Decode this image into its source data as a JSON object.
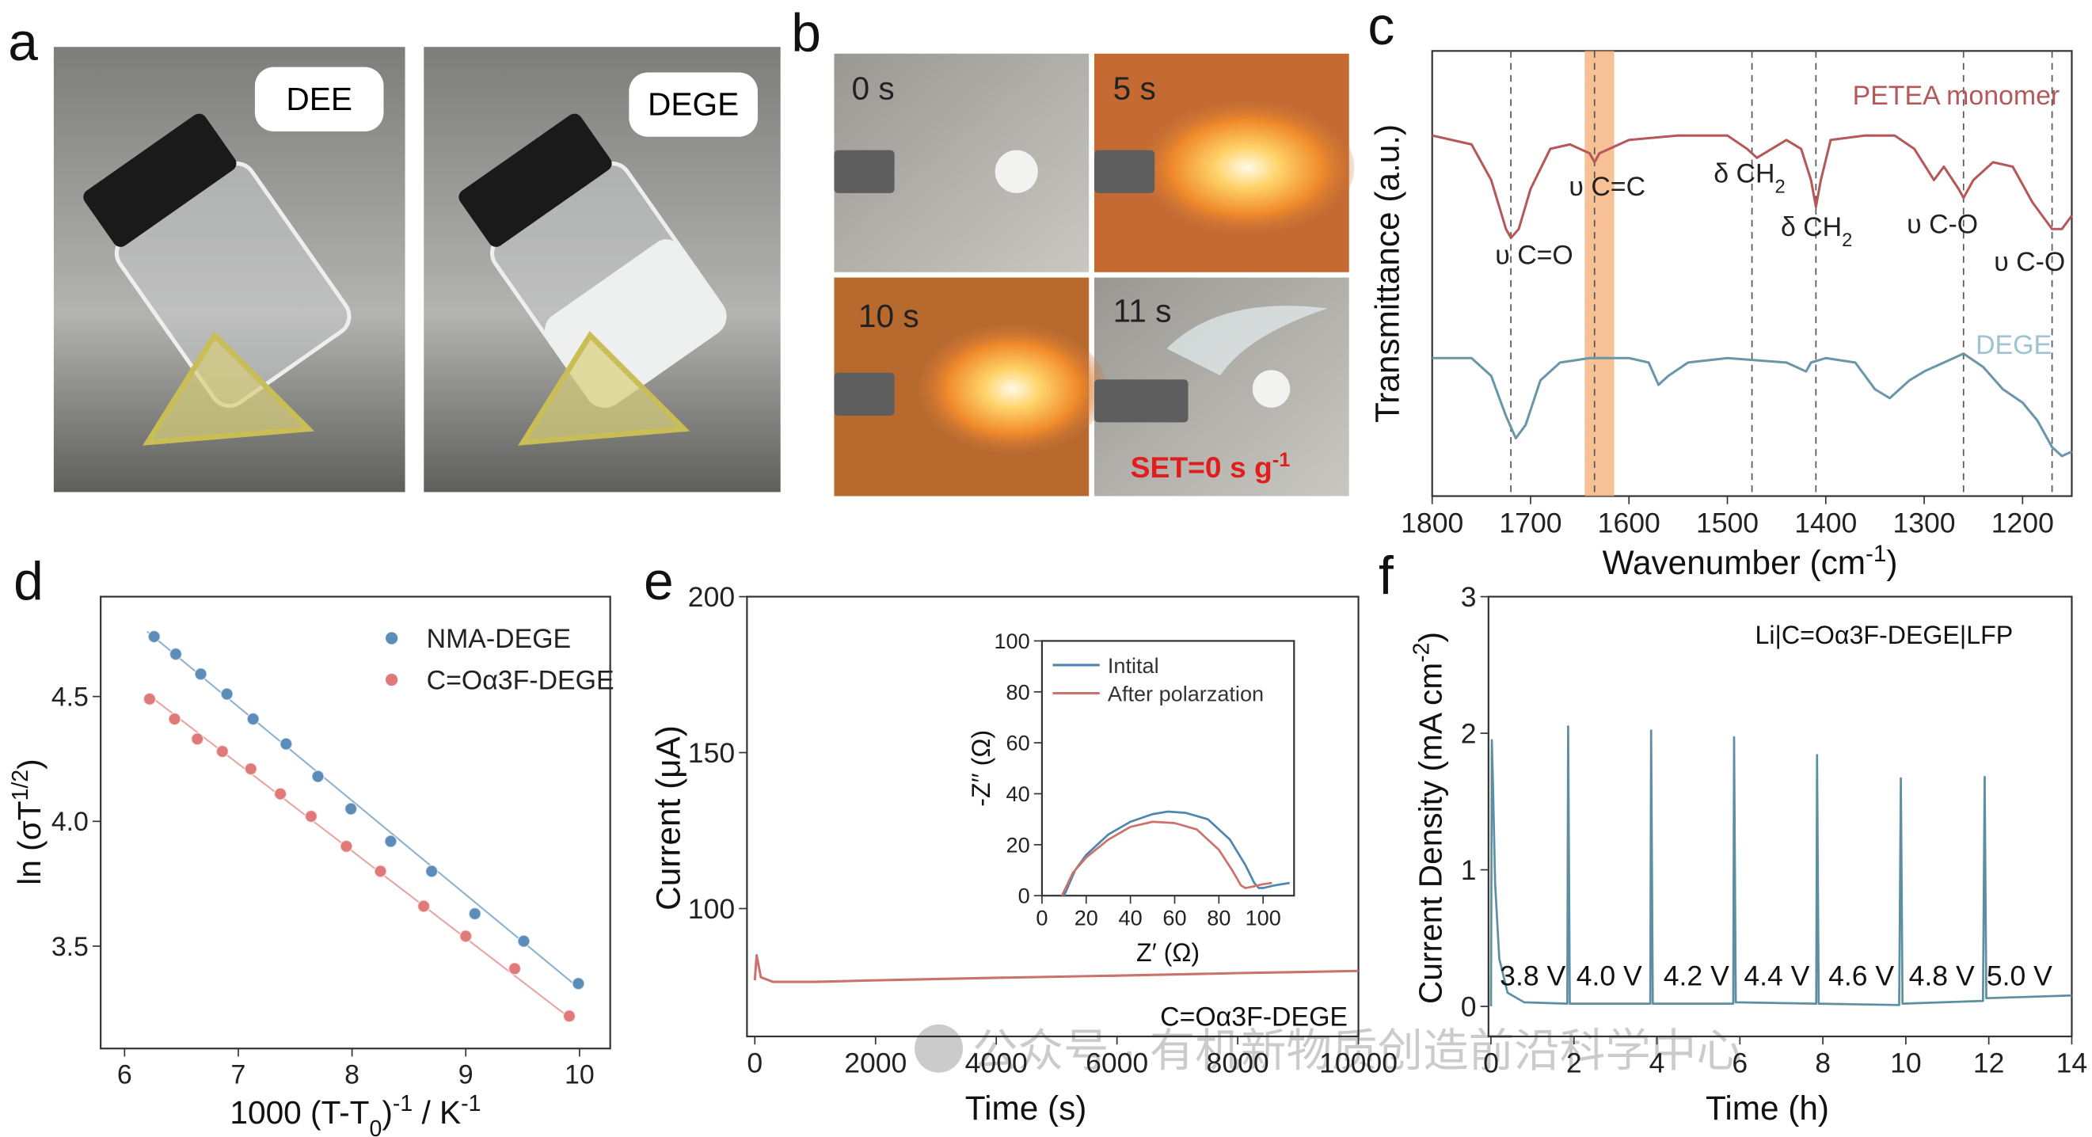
{
  "panels": {
    "a": {
      "label": "a",
      "photos": [
        "DEE",
        "DEGE"
      ]
    },
    "b": {
      "label": "b",
      "frames": [
        "0 s",
        "5 s",
        "10 s",
        "11 s"
      ],
      "note": [
        "SET=0 s g",
        "-1"
      ]
    }
  },
  "chart_data": [
    {
      "panel": "c",
      "type": "line",
      "ylabel": "Transmittance (a.u.)",
      "xlabel": [
        "Wavenumber (cm",
        "-1",
        ")"
      ],
      "xlim": [
        1800,
        1150
      ],
      "xticks": [
        1800,
        1700,
        1600,
        1500,
        1400,
        1300,
        1200
      ],
      "ylim": [
        0,
        100
      ],
      "reference_lines": [
        1720,
        1635,
        1475,
        1410,
        1260,
        1170
      ],
      "highlight": [
        1645,
        1615
      ],
      "highlight_color": "#f5b07a",
      "annotations": [
        [
          "υ C=O"
        ],
        [
          "υ C=C"
        ],
        [
          "δ CH",
          "2"
        ],
        [
          "δ CH",
          "2"
        ],
        [
          "υ C-O"
        ],
        [
          "υ C-O"
        ]
      ],
      "series": [
        {
          "name": "PETEA monomer",
          "color": "#b5585a",
          "x": [
            1800,
            1760,
            1740,
            1725,
            1720,
            1712,
            1700,
            1680,
            1660,
            1640,
            1635,
            1630,
            1600,
            1550,
            1500,
            1480,
            1470,
            1455,
            1440,
            1425,
            1415,
            1410,
            1405,
            1395,
            1360,
            1330,
            1310,
            1290,
            1280,
            1265,
            1260,
            1250,
            1230,
            1210,
            1190,
            1170,
            1160,
            1150
          ],
          "values": [
            81,
            79,
            71,
            60,
            58,
            60,
            69,
            78,
            79,
            77,
            75,
            77,
            80,
            81,
            81,
            78,
            76,
            78,
            80,
            78,
            71,
            65,
            71,
            80,
            81,
            81,
            78,
            71,
            74,
            69,
            67,
            71,
            75,
            74,
            66,
            60,
            60,
            63
          ]
        },
        {
          "name": "DEGE",
          "color": "#6a97a8",
          "x": [
            1800,
            1760,
            1740,
            1725,
            1715,
            1705,
            1690,
            1670,
            1640,
            1600,
            1580,
            1570,
            1560,
            1540,
            1500,
            1440,
            1420,
            1415,
            1400,
            1370,
            1350,
            1335,
            1315,
            1300,
            1270,
            1260,
            1240,
            1220,
            1200,
            1185,
            1170,
            1160,
            1150
          ],
          "values": [
            31,
            31,
            27,
            18,
            13,
            16,
            26,
            30,
            31,
            31,
            30,
            25,
            27,
            30,
            31,
            30,
            28,
            30,
            31,
            30,
            24,
            22,
            26,
            28,
            31,
            32,
            29,
            24,
            21,
            17,
            11,
            9,
            10
          ]
        }
      ]
    },
    {
      "panel": "d",
      "type": "scatter",
      "xlabel": [
        "1000 (T-T",
        "0",
        ")",
        "-1",
        " / K",
        "-1"
      ],
      "ylabel": [
        "ln (σT",
        "1/2",
        ")"
      ],
      "xlim": [
        5.79,
        10.27
      ],
      "xticks": [
        6,
        7,
        8,
        9,
        10
      ],
      "ylim": [
        3.09,
        4.9
      ],
      "yticks": [
        {
          "value": 3.5,
          "label": "3.5"
        },
        {
          "value": 4.0,
          "label": "4.0"
        },
        {
          "value": 4.5,
          "label": "4.5"
        }
      ],
      "series": [
        {
          "name": "NMA-DEGE",
          "color": "#5b8db8",
          "x": [
            6.26,
            6.45,
            6.67,
            6.9,
            7.13,
            7.42,
            7.7,
            7.99,
            8.34,
            8.7,
            9.08,
            9.51,
            9.99
          ],
          "values": [
            4.74,
            4.67,
            4.59,
            4.51,
            4.41,
            4.31,
            4.18,
            4.05,
            3.92,
            3.8,
            3.63,
            3.52,
            3.35
          ],
          "fit_x": [
            6.2,
            10.0
          ],
          "fit_values": [
            4.76,
            3.33
          ]
        },
        {
          "name": "C=Oα3F-DEGE",
          "color": "#e07a78",
          "x": [
            6.22,
            6.44,
            6.64,
            6.86,
            7.11,
            7.37,
            7.64,
            7.95,
            8.25,
            8.63,
            9.0,
            9.43,
            9.91
          ],
          "values": [
            4.49,
            4.41,
            4.33,
            4.28,
            4.21,
            4.11,
            4.02,
            3.9,
            3.8,
            3.66,
            3.54,
            3.41,
            3.22
          ],
          "fit_x": [
            6.2,
            9.95
          ],
          "fit_values": [
            4.51,
            3.2
          ]
        }
      ]
    },
    {
      "panel": "e",
      "type": "line",
      "xlabel": "Time (s)",
      "ylabel": "Current (μA)",
      "xlim": [
        -130,
        10000
      ],
      "xticks": [
        0,
        2000,
        4000,
        6000,
        8000,
        10000
      ],
      "ylim": [
        59,
        200
      ],
      "yticks": [
        100,
        150,
        200
      ],
      "series": [
        {
          "name": "C=Oα3F-DEGE",
          "color": "#c9736c",
          "x": [
            0,
            30,
            100,
            300,
            1000,
            2000,
            4000,
            6000,
            8000,
            10000
          ],
          "values": [
            77,
            85,
            78,
            76.5,
            76.5,
            77,
            77.8,
            78.5,
            79.3,
            80
          ]
        }
      ],
      "inset": {
        "type": "line",
        "xlabel": "Z′ (Ω)",
        "ylabel": "-Z′′ (Ω)",
        "xlim": [
          0,
          114
        ],
        "xticks": [
          0,
          20,
          40,
          60,
          80,
          100
        ],
        "ylim": [
          0,
          100
        ],
        "yticks": [
          0,
          20,
          40,
          60,
          80,
          100
        ],
        "series": [
          {
            "name": "Intital",
            "color": "#4f86b0",
            "x": [
              10,
              15,
              20,
              30,
              40,
              50,
              57,
              65,
              75,
              85,
              92,
              96,
              98,
              100,
              105,
              112
            ],
            "values": [
              0,
              10,
              16,
              24,
              29,
              32,
              33,
              32.5,
              30,
              22,
              12,
              5,
              3,
              3,
              4,
              5
            ]
          },
          {
            "name": "After polarzation",
            "color": "#c9736c",
            "x": [
              9,
              14,
              20,
              30,
              40,
              50,
              60,
              70,
              80,
              86,
              90,
              92,
              95,
              100,
              104
            ],
            "values": [
              0,
              9,
              15,
              22,
              27,
              29,
              28.5,
              26,
              18,
              10,
              4,
              3,
              3.5,
              4.5,
              5
            ]
          }
        ]
      }
    },
    {
      "panel": "f",
      "type": "line",
      "title": "Li|C=Oα3F-DEGE|LFP",
      "xlabel": "Time (h)",
      "ylabel": [
        "Current Density (mA cm",
        "-2",
        ")"
      ],
      "xlim": [
        -0.06,
        14
      ],
      "xticks": [
        0,
        2,
        4,
        6,
        8,
        10,
        12,
        14
      ],
      "ylim": [
        -0.22,
        3
      ],
      "yticks": [
        0,
        1,
        2,
        3
      ],
      "annotations": [
        "3.8 V",
        "4.0 V",
        "4.2 V",
        "4.4 V",
        "4.6 V",
        "4.8 V",
        "5.0 V"
      ],
      "series": [
        {
          "color": "#5d8fa3",
          "x": [
            0,
            0.02,
            0.05,
            0.1,
            0.2,
            0.4,
            0.8,
            1.84,
            1.86,
            1.9,
            3.84,
            3.86,
            3.9,
            5.84,
            5.86,
            5.9,
            7.84,
            7.86,
            7.9,
            9.84,
            9.88,
            9.92,
            11.86,
            11.9,
            11.94,
            14
          ],
          "values": [
            0,
            1.95,
            1.6,
            0.9,
            0.35,
            0.1,
            0.03,
            0.02,
            2.05,
            0.02,
            0.02,
            2.02,
            0.02,
            0.02,
            1.97,
            0.03,
            0.02,
            1.84,
            0.02,
            0.01,
            1.67,
            0.02,
            0.04,
            1.68,
            0.06,
            0.08
          ]
        }
      ]
    }
  ],
  "watermark": "公众号 · 有机新物质创造前沿科学中心"
}
